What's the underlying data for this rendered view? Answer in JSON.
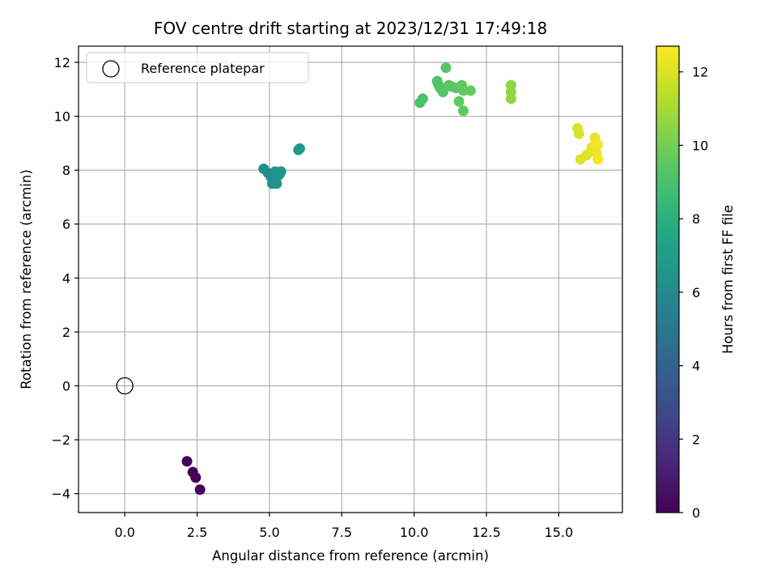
{
  "chart_data": {
    "type": "scatter",
    "title": "FOV centre drift starting at 2023/12/31 17:49:18",
    "xlabel": "Angular distance from reference (arcmin)",
    "ylabel": "Rotation from reference (arcmin)",
    "xlim": [
      -1.6,
      17.2
    ],
    "ylim": [
      -4.7,
      12.6
    ],
    "xticks": [
      0.0,
      2.5,
      5.0,
      7.5,
      10.0,
      12.5,
      15.0
    ],
    "xtick_labels": [
      "0.0",
      "2.5",
      "5.0",
      "7.5",
      "10.0",
      "12.5",
      "15.0"
    ],
    "yticks": [
      -4,
      -2,
      0,
      2,
      4,
      6,
      8,
      10,
      12
    ],
    "ytick_labels": [
      "−4",
      "−2",
      "0",
      "2",
      "4",
      "6",
      "8",
      "10",
      "12"
    ],
    "grid": true,
    "legend": {
      "position": "top-left",
      "entries": [
        {
          "label": "Reference platepar",
          "marker": "open-circle"
        }
      ]
    },
    "reference_point": {
      "x": 0.0,
      "y": 0.0
    },
    "colorbar": {
      "label": "Hours from first FF file",
      "range": [
        0,
        12.7
      ],
      "ticks": [
        0,
        2,
        4,
        6,
        8,
        10,
        12
      ],
      "colormap": "viridis"
    },
    "points": [
      {
        "x": 2.15,
        "y": -2.8,
        "c": 0.0
      },
      {
        "x": 2.35,
        "y": -3.2,
        "c": 0.05
      },
      {
        "x": 2.45,
        "y": -3.4,
        "c": 0.1
      },
      {
        "x": 2.6,
        "y": -3.85,
        "c": 0.15
      },
      {
        "x": 4.8,
        "y": 8.05,
        "c": 6.2
      },
      {
        "x": 4.95,
        "y": 7.9,
        "c": 6.25
      },
      {
        "x": 5.05,
        "y": 7.75,
        "c": 6.3
      },
      {
        "x": 5.1,
        "y": 7.5,
        "c": 6.35
      },
      {
        "x": 5.15,
        "y": 7.85,
        "c": 6.4
      },
      {
        "x": 5.2,
        "y": 7.95,
        "c": 6.45
      },
      {
        "x": 5.25,
        "y": 7.5,
        "c": 6.5
      },
      {
        "x": 5.3,
        "y": 7.8,
        "c": 6.5
      },
      {
        "x": 5.35,
        "y": 7.85,
        "c": 6.55
      },
      {
        "x": 5.4,
        "y": 7.95,
        "c": 6.6
      },
      {
        "x": 6.0,
        "y": 8.75,
        "c": 6.8
      },
      {
        "x": 6.05,
        "y": 8.8,
        "c": 6.85
      },
      {
        "x": 10.2,
        "y": 10.5,
        "c": 9.0
      },
      {
        "x": 10.3,
        "y": 10.65,
        "c": 9.05
      },
      {
        "x": 10.8,
        "y": 11.3,
        "c": 9.1
      },
      {
        "x": 10.85,
        "y": 11.15,
        "c": 9.15
      },
      {
        "x": 10.9,
        "y": 11.05,
        "c": 9.2
      },
      {
        "x": 11.0,
        "y": 10.9,
        "c": 9.25
      },
      {
        "x": 11.1,
        "y": 11.8,
        "c": 9.3
      },
      {
        "x": 11.2,
        "y": 11.15,
        "c": 9.35
      },
      {
        "x": 11.3,
        "y": 11.1,
        "c": 9.4
      },
      {
        "x": 11.45,
        "y": 11.05,
        "c": 9.45
      },
      {
        "x": 11.55,
        "y": 10.55,
        "c": 9.5
      },
      {
        "x": 11.65,
        "y": 11.15,
        "c": 9.55
      },
      {
        "x": 11.7,
        "y": 10.95,
        "c": 9.6
      },
      {
        "x": 11.7,
        "y": 10.2,
        "c": 9.6
      },
      {
        "x": 11.95,
        "y": 10.95,
        "c": 9.7
      },
      {
        "x": 13.35,
        "y": 11.15,
        "c": 10.5
      },
      {
        "x": 13.35,
        "y": 10.9,
        "c": 10.55
      },
      {
        "x": 13.35,
        "y": 10.65,
        "c": 10.6
      },
      {
        "x": 15.65,
        "y": 9.55,
        "c": 12.0
      },
      {
        "x": 15.7,
        "y": 9.35,
        "c": 12.05
      },
      {
        "x": 15.75,
        "y": 8.4,
        "c": 12.1
      },
      {
        "x": 15.95,
        "y": 8.55,
        "c": 12.15
      },
      {
        "x": 16.1,
        "y": 8.7,
        "c": 12.2
      },
      {
        "x": 16.15,
        "y": 8.85,
        "c": 12.3
      },
      {
        "x": 16.25,
        "y": 9.2,
        "c": 12.35
      },
      {
        "x": 16.3,
        "y": 8.65,
        "c": 12.4
      },
      {
        "x": 16.35,
        "y": 8.95,
        "c": 12.5
      },
      {
        "x": 16.35,
        "y": 8.4,
        "c": 12.6
      }
    ]
  }
}
